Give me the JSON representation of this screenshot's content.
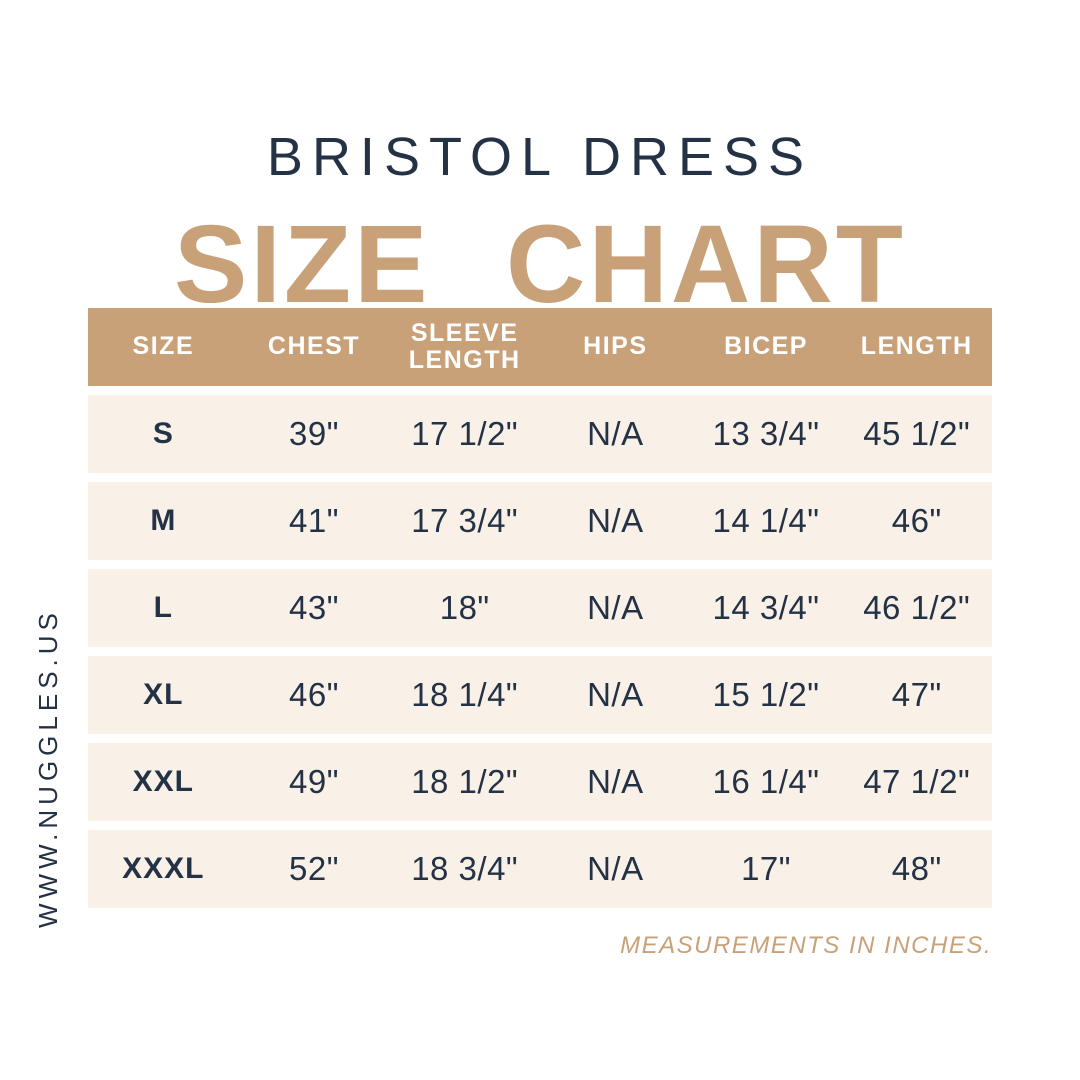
{
  "page": {
    "title": "BRISTOL DRESS",
    "heading": "SIZE CHART",
    "website": "WWW.NUGGLES.US",
    "footnote": "MEASUREMENTS IN INCHES."
  },
  "colors": {
    "accent_tan": "#C8A179",
    "navy_text": "#243246",
    "row_cream": "#F9F0E7",
    "header_text": "#FFFFFF",
    "background": "#FFFFFF"
  },
  "table": {
    "columns": [
      "SIZE",
      "CHEST",
      "SLEEVE LENGTH",
      "HIPS",
      "BICEP",
      "LENGTH"
    ],
    "rows": [
      {
        "size": "S",
        "chest": "39\"",
        "sleeve_length": "17 1/2\"",
        "hips": "N/A",
        "bicep": "13 3/4\"",
        "length": "45 1/2\""
      },
      {
        "size": "M",
        "chest": "41\"",
        "sleeve_length": "17 3/4\"",
        "hips": "N/A",
        "bicep": "14 1/4\"",
        "length": "46\""
      },
      {
        "size": "L",
        "chest": "43\"",
        "sleeve_length": "18\"",
        "hips": "N/A",
        "bicep": "14 3/4\"",
        "length": "46 1/2\""
      },
      {
        "size": "XL",
        "chest": "46\"",
        "sleeve_length": "18 1/4\"",
        "hips": "N/A",
        "bicep": "15 1/2\"",
        "length": "47\""
      },
      {
        "size": "XXL",
        "chest": "49\"",
        "sleeve_length": "18 1/2\"",
        "hips": "N/A",
        "bicep": "16 1/4\"",
        "length": "47 1/2\""
      },
      {
        "size": "XXXL",
        "chest": "52\"",
        "sleeve_length": "18 3/4\"",
        "hips": "N/A",
        "bicep": "17\"",
        "length": "48\""
      }
    ]
  }
}
